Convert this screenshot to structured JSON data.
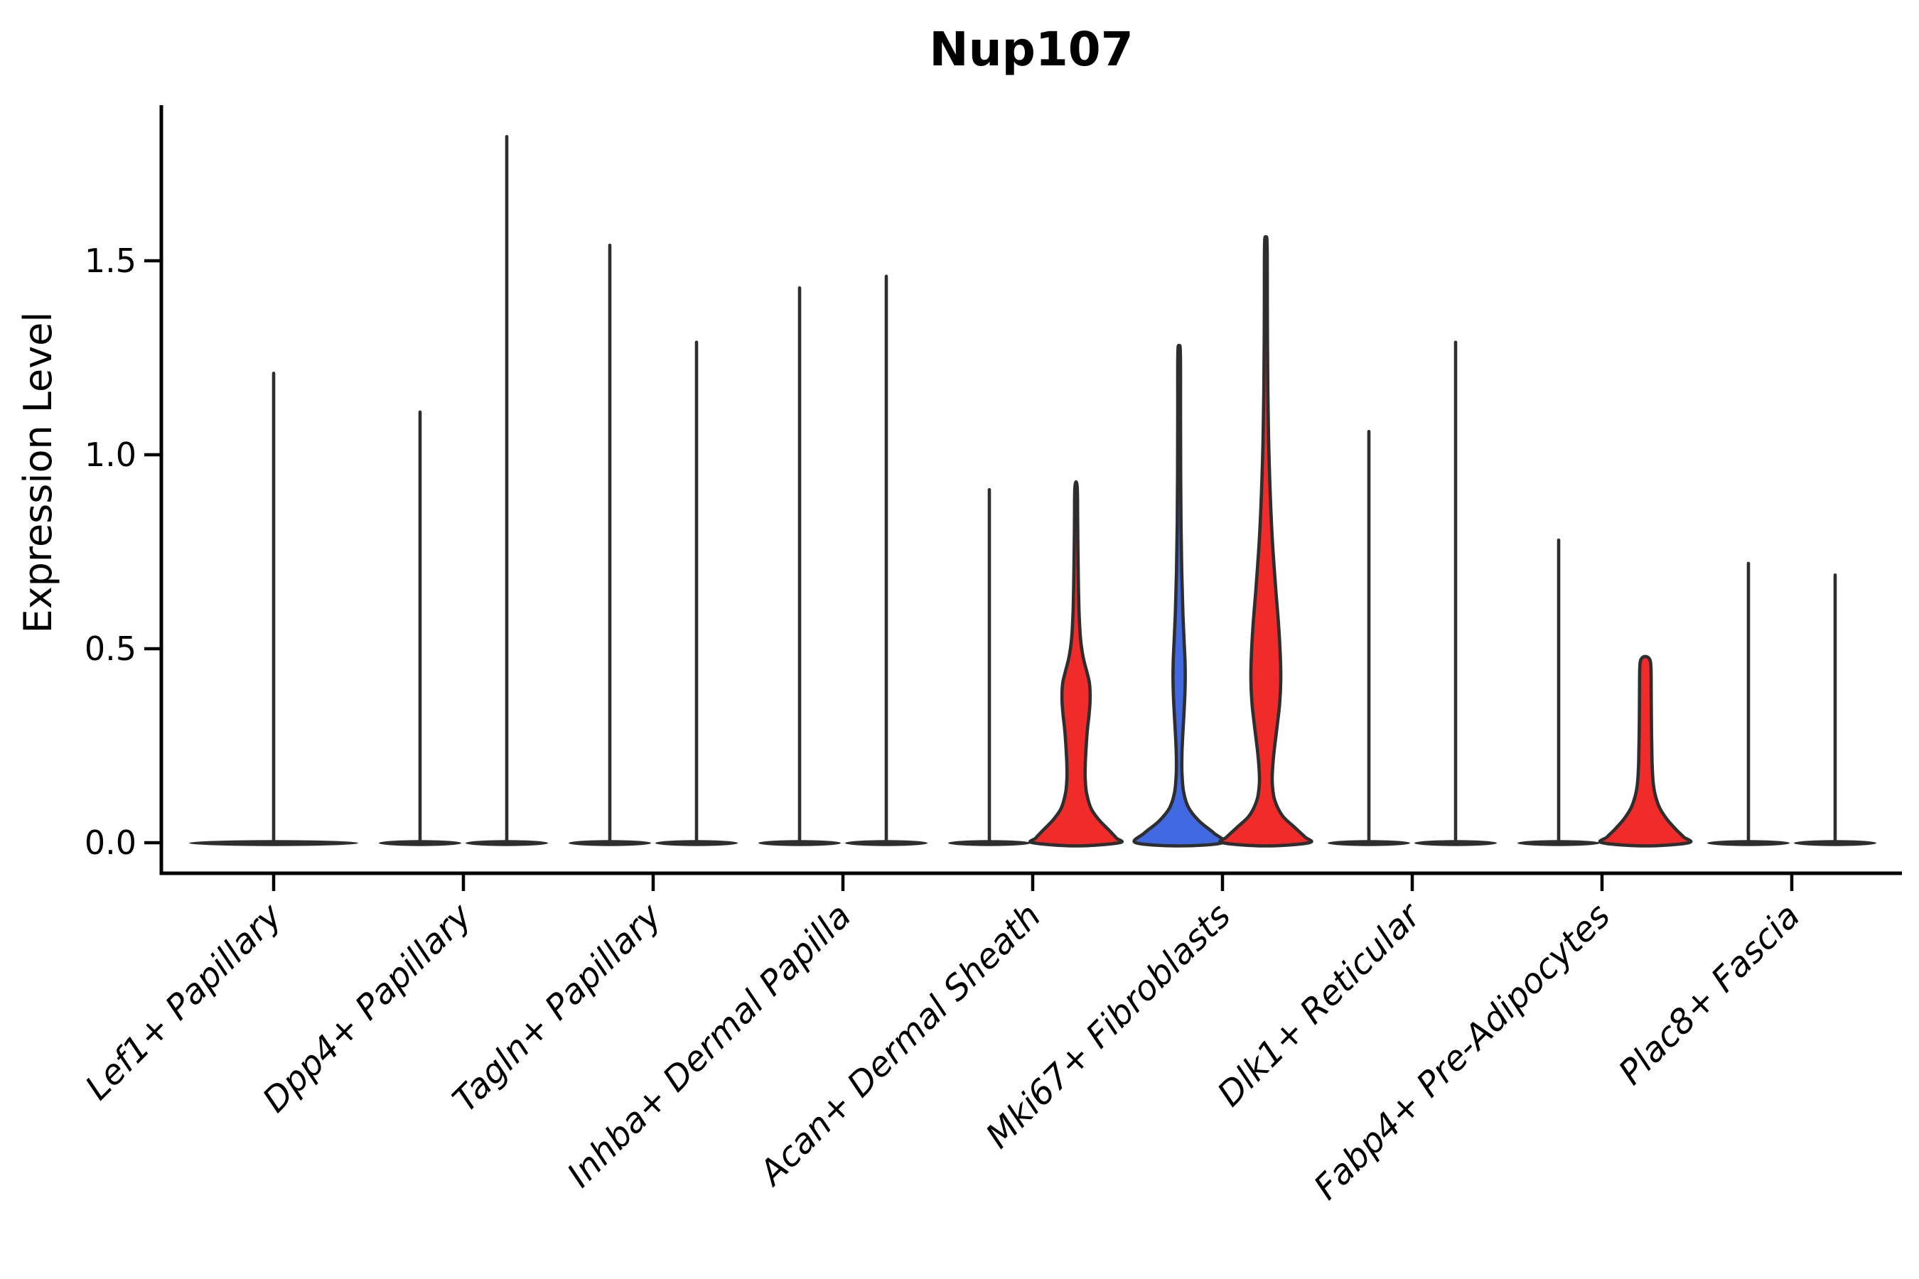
{
  "title": "Nup107",
  "ylabel": "Expression Level",
  "colors": {
    "red": "#f12a2a",
    "blue": "#4169e1",
    "outline": "#2e2e2e",
    "axis": "#000000",
    "text": "#000000",
    "background": "#ffffff"
  },
  "chart_data": {
    "type": "violin",
    "title": "Nup107",
    "xlabel": "",
    "ylabel": "Expression Level",
    "ylim": [
      -0.05,
      1.9
    ],
    "grid": false,
    "legend": null,
    "yticks": [
      {
        "value": 0.0,
        "label": "0.0"
      },
      {
        "value": 0.5,
        "label": "0.5"
      },
      {
        "value": 1.0,
        "label": "1.0"
      },
      {
        "value": 1.5,
        "label": "1.5"
      }
    ],
    "categories": [
      "Lef1+ Papillary",
      "Dpp4+ Papillary",
      "Tagln+ Papillary",
      "Inhba+ Dermal Papilla",
      "Acan+ Dermal Sheath",
      "Mki67+ Fibroblasts",
      "Dlk1+ Reticular",
      "Fabp4+ Pre-Adipocytes",
      "Plac8+ Fascia"
    ],
    "groups": [
      {
        "category": "Lef1+ Papillary",
        "violins": [
          {
            "kind": "spike",
            "peak": 1.21,
            "color": "outline",
            "span": "full"
          }
        ]
      },
      {
        "category": "Dpp4+ Papillary",
        "violins": [
          {
            "kind": "spike",
            "peak": 1.11,
            "color": "outline"
          },
          {
            "kind": "spike",
            "peak": 1.82,
            "color": "outline"
          }
        ]
      },
      {
        "category": "Tagln+ Papillary",
        "violins": [
          {
            "kind": "spike",
            "peak": 1.54,
            "color": "outline"
          },
          {
            "kind": "spike",
            "peak": 1.29,
            "color": "outline"
          }
        ]
      },
      {
        "category": "Inhba+ Dermal Papilla",
        "violins": [
          {
            "kind": "spike",
            "peak": 1.43,
            "color": "outline"
          },
          {
            "kind": "spike",
            "peak": 1.46,
            "color": "outline"
          }
        ]
      },
      {
        "category": "Acan+ Dermal Sheath",
        "violins": [
          {
            "kind": "spike",
            "peak": 0.91,
            "color": "outline"
          },
          {
            "kind": "shape",
            "peak": 0.93,
            "color": "red",
            "profile": "acan_red"
          }
        ]
      },
      {
        "category": "Mki67+ Fibroblasts",
        "violins": [
          {
            "kind": "shape",
            "peak": 1.28,
            "color": "blue",
            "profile": "mki67_blue"
          },
          {
            "kind": "shape",
            "peak": 1.56,
            "color": "red",
            "profile": "mki67_red"
          }
        ]
      },
      {
        "category": "Dlk1+ Reticular",
        "violins": [
          {
            "kind": "spike",
            "peak": 1.06,
            "color": "outline"
          },
          {
            "kind": "spike",
            "peak": 1.29,
            "color": "outline"
          }
        ]
      },
      {
        "category": "Fabp4+ Pre-Adipocytes",
        "violins": [
          {
            "kind": "spike",
            "peak": 0.78,
            "color": "outline"
          },
          {
            "kind": "shape",
            "peak": 0.48,
            "color": "red",
            "profile": "fabp4_red"
          }
        ]
      },
      {
        "category": "Plac8+ Fascia",
        "violins": [
          {
            "kind": "spike",
            "peak": 0.72,
            "color": "outline"
          },
          {
            "kind": "spike",
            "peak": 0.69,
            "color": "outline"
          }
        ]
      }
    ],
    "profiles": {
      "acan_red": [
        [
          0.93,
          0.0
        ],
        [
          0.91,
          0.03
        ],
        [
          0.84,
          0.036
        ],
        [
          0.76,
          0.042
        ],
        [
          0.68,
          0.052
        ],
        [
          0.6,
          0.068
        ],
        [
          0.53,
          0.1
        ],
        [
          0.48,
          0.16
        ],
        [
          0.44,
          0.25
        ],
        [
          0.41,
          0.31
        ],
        [
          0.37,
          0.325
        ],
        [
          0.33,
          0.3
        ],
        [
          0.29,
          0.26
        ],
        [
          0.25,
          0.235
        ],
        [
          0.21,
          0.215
        ],
        [
          0.17,
          0.21
        ],
        [
          0.13,
          0.24
        ],
        [
          0.09,
          0.34
        ],
        [
          0.06,
          0.52
        ],
        [
          0.03,
          0.78
        ],
        [
          0.012,
          0.93
        ],
        [
          0.0,
          1.0
        ]
      ],
      "mki67_blue": [
        [
          1.28,
          0.0
        ],
        [
          1.26,
          0.03
        ],
        [
          1.1,
          0.032
        ],
        [
          0.95,
          0.036
        ],
        [
          0.82,
          0.044
        ],
        [
          0.7,
          0.06
        ],
        [
          0.6,
          0.085
        ],
        [
          0.52,
          0.115
        ],
        [
          0.46,
          0.138
        ],
        [
          0.4,
          0.138
        ],
        [
          0.34,
          0.115
        ],
        [
          0.28,
          0.085
        ],
        [
          0.23,
          0.066
        ],
        [
          0.18,
          0.066
        ],
        [
          0.13,
          0.105
        ],
        [
          0.09,
          0.22
        ],
        [
          0.055,
          0.47
        ],
        [
          0.025,
          0.8
        ],
        [
          0.0,
          1.0
        ]
      ],
      "mki67_red": [
        [
          1.56,
          0.0
        ],
        [
          1.54,
          0.03
        ],
        [
          1.38,
          0.034
        ],
        [
          1.22,
          0.042
        ],
        [
          1.06,
          0.06
        ],
        [
          0.92,
          0.095
        ],
        [
          0.78,
          0.15
        ],
        [
          0.66,
          0.225
        ],
        [
          0.56,
          0.295
        ],
        [
          0.48,
          0.335
        ],
        [
          0.42,
          0.345
        ],
        [
          0.36,
          0.32
        ],
        [
          0.3,
          0.26
        ],
        [
          0.24,
          0.195
        ],
        [
          0.19,
          0.155
        ],
        [
          0.15,
          0.15
        ],
        [
          0.11,
          0.205
        ],
        [
          0.07,
          0.38
        ],
        [
          0.04,
          0.66
        ],
        [
          0.015,
          0.9
        ],
        [
          0.0,
          1.0
        ]
      ],
      "fabp4_red": [
        [
          0.48,
          0.0
        ],
        [
          0.477,
          0.07
        ],
        [
          0.468,
          0.115
        ],
        [
          0.45,
          0.13
        ],
        [
          0.4,
          0.135
        ],
        [
          0.34,
          0.138
        ],
        [
          0.28,
          0.143
        ],
        [
          0.23,
          0.15
        ],
        [
          0.19,
          0.16
        ],
        [
          0.15,
          0.185
        ],
        [
          0.12,
          0.235
        ],
        [
          0.09,
          0.33
        ],
        [
          0.06,
          0.5
        ],
        [
          0.035,
          0.7
        ],
        [
          0.015,
          0.88
        ],
        [
          0.0,
          1.0
        ]
      ]
    }
  }
}
